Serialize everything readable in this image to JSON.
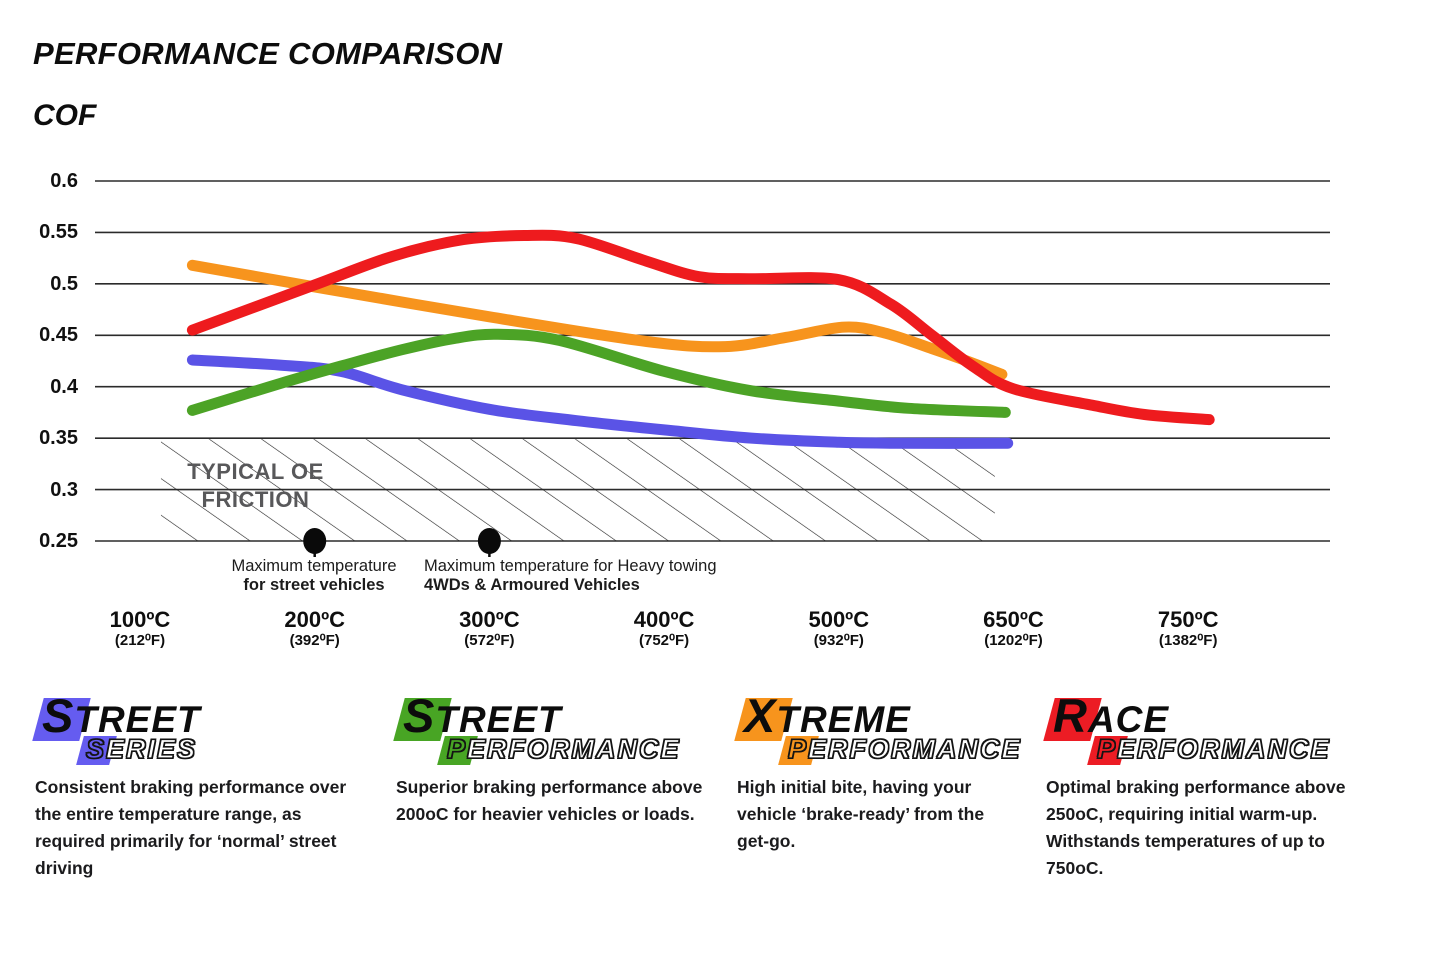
{
  "title": "PERFORMANCE COMPARISON",
  "y_axis_label": "COF",
  "chart_data": {
    "type": "line",
    "title": "PERFORMANCE COMPARISON",
    "ylabel": "COF",
    "ylim": [
      0.25,
      0.6
    ],
    "grid": true,
    "y_ticks": [
      0.6,
      0.55,
      0.5,
      0.45,
      0.4,
      0.35,
      0.3,
      0.25
    ],
    "x_ticks": [
      {
        "c": "100ºC",
        "f": "(212⁰F)",
        "value": 100
      },
      {
        "c": "200ºC",
        "f": "(392⁰F)",
        "value": 200
      },
      {
        "c": "300ºC",
        "f": "(572⁰F)",
        "value": 300
      },
      {
        "c": "400ºC",
        "f": "(752⁰F)",
        "value": 400
      },
      {
        "c": "500ºC",
        "f": "(932⁰F)",
        "value": 500
      },
      {
        "c": "650ºC",
        "f": "(1202⁰F)",
        "value": 650
      },
      {
        "c": "750ºC",
        "f": "(1382⁰F)",
        "value": 750
      }
    ],
    "oe_zone": {
      "label_line1": "TYPICAL OE",
      "label_line2": "FRICTION",
      "cof_top": 0.35,
      "cof_bottom": 0.25,
      "temp_start": 112,
      "temp_end": 634
    },
    "annotations": [
      {
        "line1": "Maximum temperature",
        "line2": "for street vehicles",
        "at_c": 200
      },
      {
        "line1": "Maximum temperature for Heavy towing",
        "line2": "4WDs & Armoured Vehicles",
        "at_c": 300
      }
    ],
    "series": [
      {
        "name": "Street Series",
        "color": "#5A53E6",
        "points": [
          [
            130,
            0.426
          ],
          [
            180,
            0.421
          ],
          [
            215,
            0.415
          ],
          [
            250,
            0.397
          ],
          [
            300,
            0.378
          ],
          [
            350,
            0.367
          ],
          [
            400,
            0.358
          ],
          [
            450,
            0.35
          ],
          [
            500,
            0.346
          ],
          [
            550,
            0.345
          ],
          [
            645,
            0.345
          ]
        ]
      },
      {
        "name": "Street Performance",
        "color": "#4CA326",
        "points": [
          [
            130,
            0.377
          ],
          [
            180,
            0.403
          ],
          [
            215,
            0.42
          ],
          [
            250,
            0.436
          ],
          [
            280,
            0.447
          ],
          [
            305,
            0.451
          ],
          [
            340,
            0.445
          ],
          [
            400,
            0.415
          ],
          [
            450,
            0.396
          ],
          [
            500,
            0.386
          ],
          [
            560,
            0.379
          ],
          [
            643,
            0.375
          ]
        ]
      },
      {
        "name": "Xtreme Performance",
        "color": "#F7941D",
        "points": [
          [
            130,
            0.518
          ],
          [
            200,
            0.497
          ],
          [
            300,
            0.468
          ],
          [
            390,
            0.444
          ],
          [
            435,
            0.439
          ],
          [
            470,
            0.448
          ],
          [
            505,
            0.458
          ],
          [
            540,
            0.452
          ],
          [
            580,
            0.437
          ],
          [
            610,
            0.425
          ],
          [
            640,
            0.412
          ]
        ]
      },
      {
        "name": "Race Performance",
        "color": "#EE1B1E",
        "points": [
          [
            130,
            0.455
          ],
          [
            200,
            0.499
          ],
          [
            245,
            0.527
          ],
          [
            285,
            0.543
          ],
          [
            320,
            0.547
          ],
          [
            350,
            0.544
          ],
          [
            390,
            0.522
          ],
          [
            420,
            0.507
          ],
          [
            450,
            0.505
          ],
          [
            500,
            0.504
          ],
          [
            545,
            0.48
          ],
          [
            580,
            0.45
          ],
          [
            615,
            0.42
          ],
          [
            650,
            0.398
          ],
          [
            695,
            0.382
          ],
          [
            725,
            0.373
          ],
          [
            762,
            0.368
          ]
        ]
      }
    ]
  },
  "legend": {
    "items": [
      {
        "id": "street-series",
        "color": "#655CF0",
        "word1_initial": "S",
        "word1_rest": "TREET",
        "word2_initial": "S",
        "word2_rest": "ERIES",
        "description": "Consistent braking performance over the entire temperature range, as required primarily for ‘normal’ street driving"
      },
      {
        "id": "street-performance",
        "color": "#48A524",
        "word1_initial": "S",
        "word1_rest": "TREET",
        "word2_initial": "P",
        "word2_rest": "ERFORMANCE",
        "description": "Superior braking performance above 200oC for heavier vehicles or loads."
      },
      {
        "id": "xtreme-performance",
        "color": "#F7941D",
        "word1_initial": "X",
        "word1_rest": "TREME",
        "word2_initial": "P",
        "word2_rest": "ERFORMANCE",
        "description": "High initial bite, having your vehicle ‘brake-ready’ from the get-go."
      },
      {
        "id": "race-performance",
        "color": "#EC1C24",
        "word1_initial": "R",
        "word1_rest": "ACE",
        "word2_initial": "P",
        "word2_rest": "ERFORMANCE",
        "description": "Optimal braking performance above 250oC, requiring initial warm-up. Withstands temperatures of up to 750oC."
      }
    ]
  }
}
